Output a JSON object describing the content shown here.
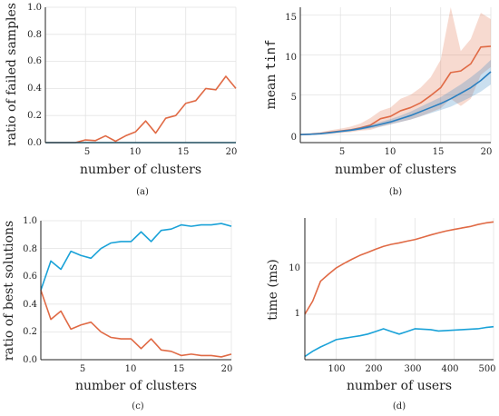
{
  "chart_data": [
    {
      "panel": "(a)",
      "type": "line",
      "x": [
        1,
        2,
        3,
        4,
        5,
        6,
        7,
        8,
        9,
        10,
        11,
        12,
        13,
        14,
        15,
        16,
        17,
        18,
        19,
        20
      ],
      "series": [
        {
          "color": "#e06a45",
          "values": [
            0,
            0,
            0,
            0,
            0.02,
            0.015,
            0.05,
            0.01,
            0.05,
            0.08,
            0.16,
            0.07,
            0.18,
            0.2,
            0.29,
            0.31,
            0.4,
            0.39,
            0.49,
            0.4
          ]
        },
        {
          "color": "#1aa2d8",
          "values": [
            0,
            0,
            0,
            0,
            0,
            0,
            0,
            0,
            0,
            0,
            0,
            0,
            0,
            0,
            0,
            0,
            0,
            0,
            0,
            0
          ]
        }
      ],
      "xlabel": "number of clusters",
      "ylabel": "ratio of failed samples",
      "xlim": [
        1,
        20
      ],
      "ylim": [
        0,
        1
      ],
      "xticks": [
        "5",
        "10",
        "15",
        "20"
      ],
      "yticks": [
        "0.0",
        "0.2",
        "0.4",
        "0.6",
        "0.8",
        "1.0"
      ],
      "grid": true
    },
    {
      "panel": "(b)",
      "type": "line",
      "x": [
        1,
        2,
        3,
        4,
        5,
        6,
        7,
        8,
        9,
        10,
        11,
        12,
        13,
        14,
        15,
        16,
        17,
        18,
        19,
        20
      ],
      "series": [
        {
          "color": "#e06a45",
          "values": [
            0,
            0.05,
            0.15,
            0.3,
            0.45,
            0.6,
            0.85,
            1.2,
            2.0,
            2.3,
            3.0,
            3.4,
            4.0,
            4.9,
            5.9,
            7.8,
            8.0,
            8.9,
            11.0,
            11.1
          ],
          "band_low": [
            0,
            0,
            0.05,
            0.1,
            0.2,
            0.3,
            0.5,
            0.6,
            1.0,
            1.3,
            1.6,
            1.9,
            2.3,
            2.8,
            3.3,
            4.5,
            3.6,
            4.5,
            7.5,
            8.5
          ],
          "band_high": [
            0.1,
            0.2,
            0.3,
            0.55,
            0.75,
            1.0,
            1.4,
            2.1,
            3.0,
            3.4,
            4.5,
            5.0,
            5.9,
            7.2,
            9.4,
            16.0,
            10.5,
            12.0,
            15.3,
            14.5
          ]
        },
        {
          "color": "#2a7fc0",
          "values": [
            0,
            0.05,
            0.12,
            0.25,
            0.4,
            0.55,
            0.75,
            1.0,
            1.3,
            1.6,
            2.0,
            2.4,
            2.9,
            3.4,
            3.9,
            4.5,
            5.2,
            5.9,
            6.8,
            7.9
          ],
          "band_low": [
            0,
            0.02,
            0.08,
            0.18,
            0.3,
            0.42,
            0.58,
            0.78,
            1.0,
            1.3,
            1.6,
            1.9,
            2.3,
            2.7,
            3.1,
            3.5,
            4.1,
            4.7,
            5.4,
            6.3
          ],
          "band_high": [
            0.05,
            0.1,
            0.2,
            0.35,
            0.52,
            0.7,
            0.95,
            1.25,
            1.6,
            1.95,
            2.4,
            2.9,
            3.5,
            4.1,
            4.7,
            5.5,
            6.3,
            7.2,
            8.2,
            9.4
          ]
        }
      ],
      "xlabel": "number of clusters",
      "ylabel_prefix": "mean ",
      "ylabel_code": "tinf",
      "xlim": [
        1,
        20
      ],
      "ylim": [
        -1,
        16
      ],
      "xticks": [
        "5",
        "10",
        "15",
        "20"
      ],
      "yticks": [
        "0",
        "5",
        "10",
        "15"
      ],
      "grid": true
    },
    {
      "panel": "(c)",
      "type": "line",
      "x": [
        1,
        2,
        3,
        4,
        5,
        6,
        7,
        8,
        9,
        10,
        11,
        12,
        13,
        14,
        15,
        16,
        17,
        18,
        19,
        20
      ],
      "series": [
        {
          "color": "#1aa2d8",
          "values": [
            0.5,
            0.71,
            0.65,
            0.78,
            0.75,
            0.73,
            0.8,
            0.84,
            0.85,
            0.85,
            0.92,
            0.85,
            0.93,
            0.94,
            0.97,
            0.96,
            0.97,
            0.97,
            0.98,
            0.96
          ]
        },
        {
          "color": "#e06a45",
          "values": [
            0.5,
            0.29,
            0.35,
            0.22,
            0.25,
            0.27,
            0.2,
            0.16,
            0.15,
            0.15,
            0.08,
            0.15,
            0.07,
            0.06,
            0.03,
            0.04,
            0.03,
            0.03,
            0.02,
            0.04
          ]
        }
      ],
      "xlabel": "number of clusters",
      "ylabel": "ratio of best solutions",
      "xlim": [
        1,
        20
      ],
      "ylim": [
        0,
        1
      ],
      "xticks": [
        "5",
        "10",
        "15",
        "20"
      ],
      "yticks": [
        "0.0",
        "0.2",
        "0.4",
        "0.6",
        "0.8",
        "1.0"
      ],
      "grid": true
    },
    {
      "panel": "(d)",
      "type": "line",
      "x": [
        20,
        40,
        60,
        80,
        100,
        120,
        140,
        160,
        180,
        200,
        220,
        240,
        260,
        280,
        300,
        320,
        340,
        360,
        380,
        400,
        420,
        440,
        460,
        480,
        500
      ],
      "series": [
        {
          "color": "#e06a45",
          "values": [
            1.0,
            1.8,
            4.4,
            6.0,
            8.0,
            9.8,
            11.8,
            14.0,
            16.0,
            18.5,
            21.0,
            23.0,
            24.5,
            26.5,
            28.5,
            31.5,
            35.0,
            38.5,
            42.0,
            45.0,
            48.0,
            51.0,
            56.0,
            60.0,
            63.0
          ]
        },
        {
          "color": "#1aa2d8",
          "values": [
            0.15,
            0.19,
            0.23,
            0.27,
            0.32,
            0.34,
            0.36,
            0.38,
            0.41,
            0.46,
            0.52,
            0.46,
            0.41,
            0.46,
            0.52,
            0.51,
            0.5,
            0.47,
            0.48,
            0.49,
            0.5,
            0.51,
            0.52,
            0.55,
            0.57
          ]
        }
      ],
      "xlabel": "number of users",
      "ylabel": "time (ms)",
      "xlim": [
        20,
        500
      ],
      "ylim": [
        0.13,
        75
      ],
      "yscale": "log",
      "xticks": [
        "100",
        "200",
        "300",
        "400",
        "500"
      ],
      "yticks": [
        "1",
        "10"
      ],
      "grid": true
    }
  ]
}
